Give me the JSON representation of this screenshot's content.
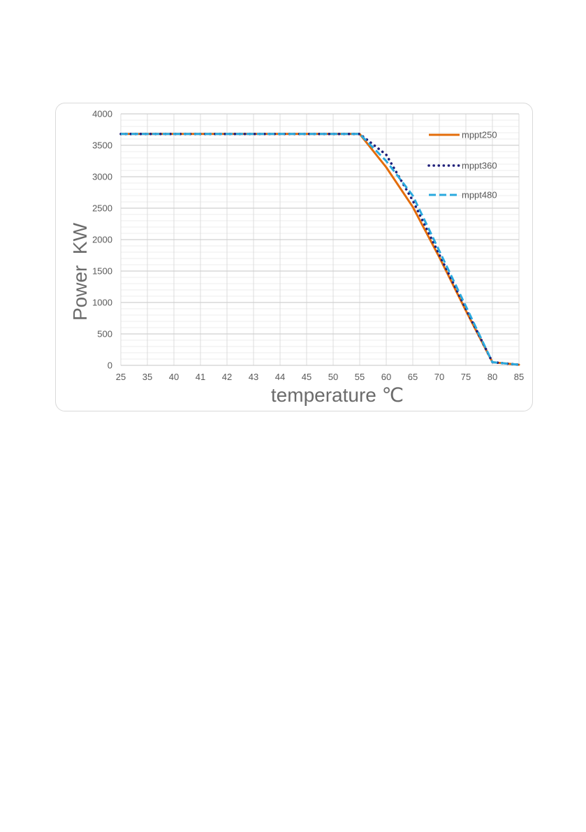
{
  "chart_data": {
    "type": "line",
    "categories": [
      "25",
      "35",
      "40",
      "41",
      "42",
      "43",
      "44",
      "45",
      "50",
      "55",
      "60",
      "65",
      "70",
      "75",
      "80",
      "85"
    ],
    "xlabel": "temperature ℃",
    "ylabel": "Power  KW",
    "ylim": [
      0,
      4000
    ],
    "yticks": [
      0,
      500,
      1000,
      1500,
      2000,
      2500,
      3000,
      3500,
      4000
    ],
    "grid": true,
    "legend_position": "top-right",
    "series": [
      {
        "name": "mppt250",
        "color": "#e36c0a",
        "style": "solid",
        "points": [
          [
            0,
            3680
          ],
          [
            9,
            3680
          ],
          [
            10,
            3150
          ],
          [
            11,
            2520
          ],
          [
            12,
            1720
          ],
          [
            13,
            870
          ],
          [
            14,
            50
          ],
          [
            15,
            10
          ]
        ]
      },
      {
        "name": "mppt360",
        "color": "#1f1f7a",
        "style": "dotted",
        "points": [
          [
            0,
            3680
          ],
          [
            9,
            3680
          ],
          [
            10,
            3350
          ],
          [
            11,
            2620
          ],
          [
            12,
            1760
          ],
          [
            13,
            900
          ],
          [
            14,
            50
          ],
          [
            15,
            10
          ]
        ]
      },
      {
        "name": "mppt480",
        "color": "#2aa9de",
        "style": "dashed",
        "points": [
          [
            0,
            3680
          ],
          [
            9,
            3680
          ],
          [
            10,
            3250
          ],
          [
            11,
            2700
          ],
          [
            12,
            1820
          ],
          [
            13,
            940
          ],
          [
            14,
            50
          ],
          [
            15,
            10
          ]
        ]
      }
    ]
  }
}
